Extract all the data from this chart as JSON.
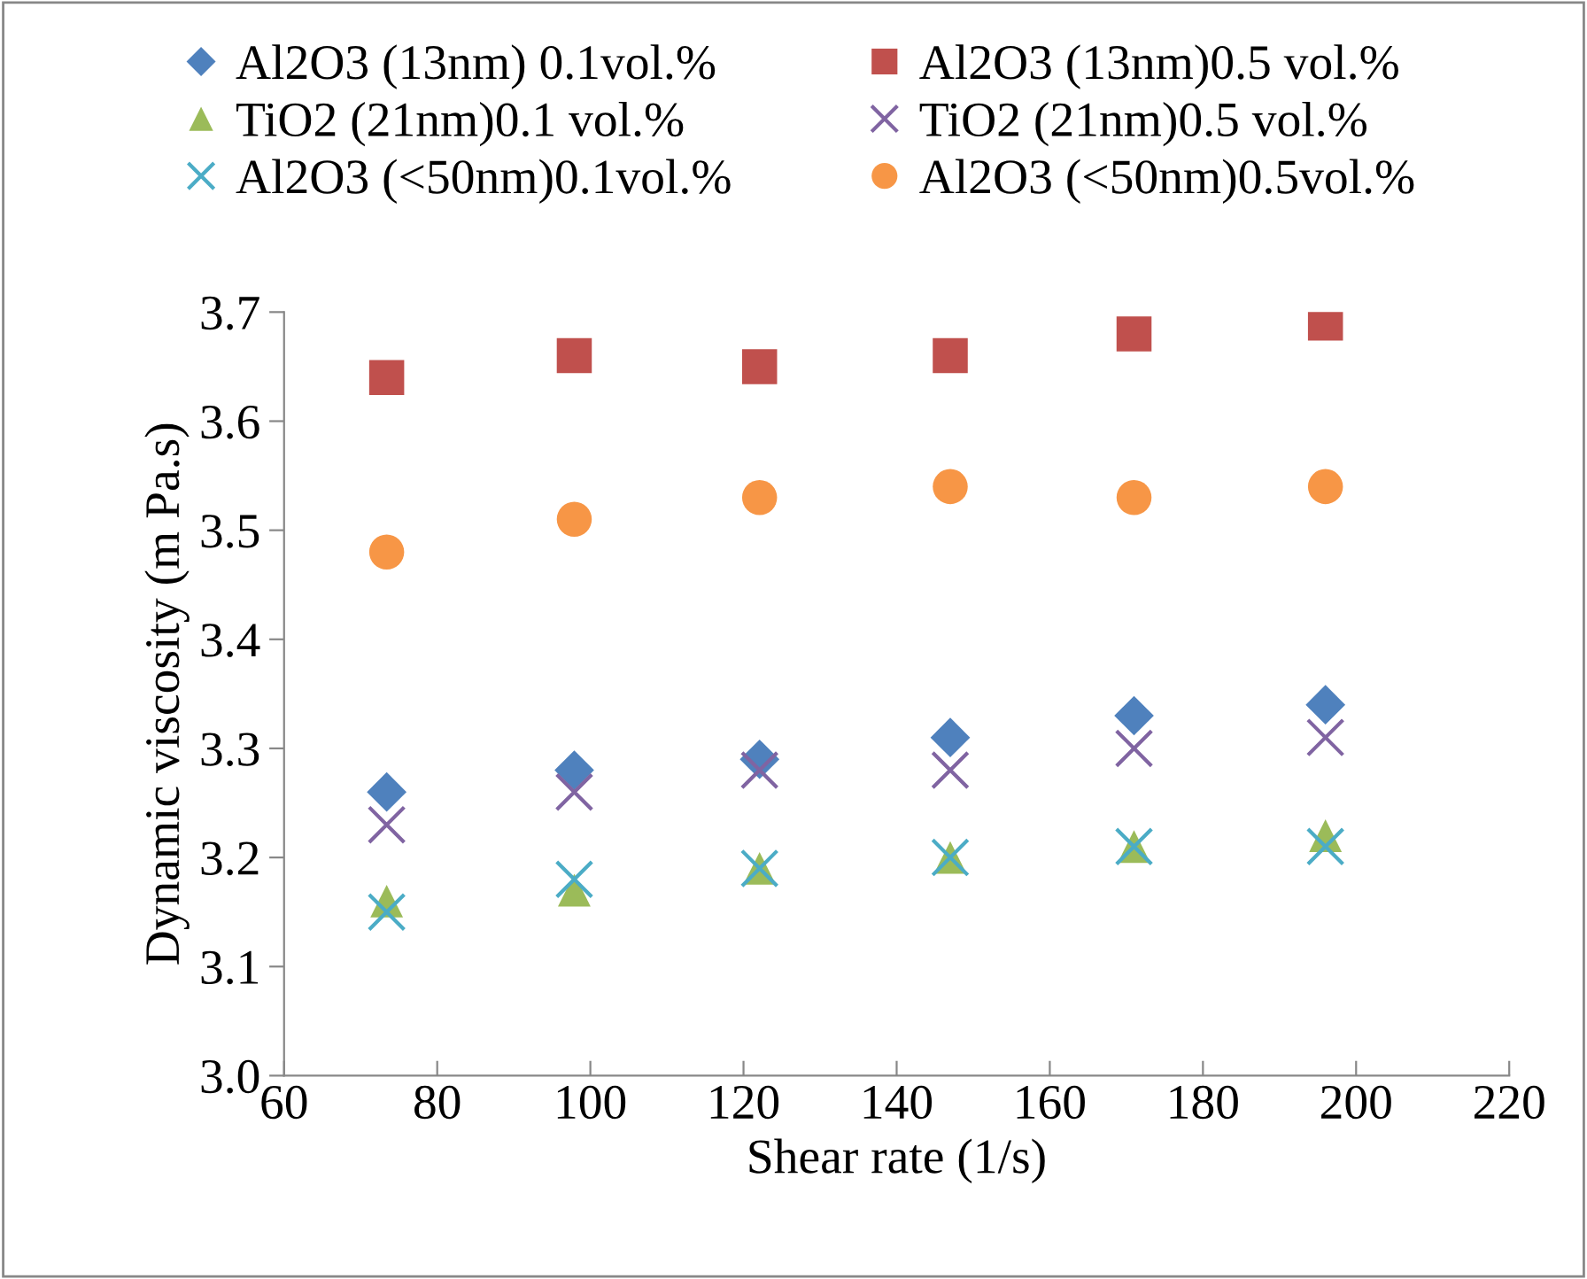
{
  "chart_data": {
    "type": "scatter",
    "xlabel": "Shear rate (1/s)",
    "ylabel": "Dynamic viscosity (m Pa.s)",
    "xlim": [
      60,
      220
    ],
    "xticks": [
      60,
      80,
      100,
      120,
      140,
      160,
      180,
      200,
      220
    ],
    "ylim": [
      3.0,
      3.7
    ],
    "yticks": [
      {
        "value": 3.0,
        "label": "3.0"
      },
      3.1,
      3.2,
      3.3,
      3.4,
      3.5,
      3.6,
      3.7
    ],
    "x": [
      73.4,
      97.9,
      122.1,
      147,
      171,
      196
    ],
    "grid": false,
    "legend": "top",
    "series": [
      {
        "name": "Al2O3 (13nm) 0.1vol.%",
        "color": "#4f81bd",
        "marker": "diamond",
        "values": [
          3.26,
          3.28,
          3.29,
          3.31,
          3.33,
          3.34
        ]
      },
      {
        "name": "Al2O3 (13nm)0.5 vol.%",
        "color": "#c0504d",
        "marker": "square",
        "values": [
          3.64,
          3.66,
          3.65,
          3.66,
          3.68,
          3.69
        ]
      },
      {
        "name": "TiO2 (21nm)0.1 vol.%",
        "color": "#9bbb59",
        "marker": "triangle",
        "values": [
          3.16,
          3.17,
          3.19,
          3.2,
          3.21,
          3.22
        ]
      },
      {
        "name": "TiO2 (21nm)0.5 vol.%",
        "color": "#8064a2",
        "marker": "cross",
        "values": [
          3.23,
          3.26,
          3.28,
          3.28,
          3.3,
          3.31
        ]
      },
      {
        "name": "Al2O3 (<50nm)0.1vol.%",
        "color": "#4bacc6",
        "marker": "cross",
        "values": [
          3.15,
          3.18,
          3.19,
          3.2,
          3.21,
          3.21
        ]
      },
      {
        "name": "Al2O3 (<50nm)0.5vol.%",
        "color": "#f79646",
        "marker": "circle",
        "values": [
          3.48,
          3.51,
          3.53,
          3.54,
          3.53,
          3.54
        ]
      }
    ]
  }
}
